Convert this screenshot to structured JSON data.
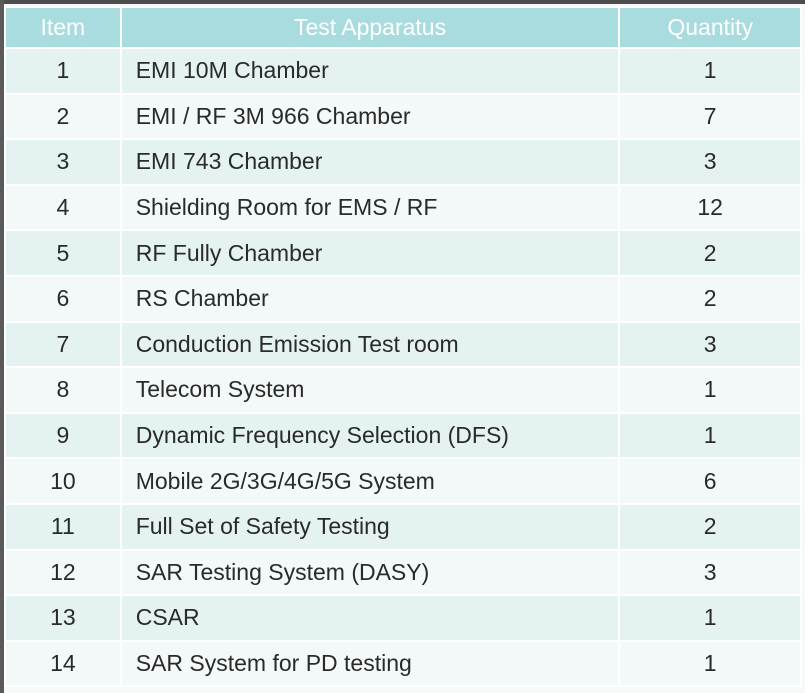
{
  "table": {
    "header": [
      "Item",
      "Test Apparatus",
      "Quantity"
    ],
    "rows": [
      [
        1,
        "EMI 10M Chamber",
        1
      ],
      [
        2,
        "EMI / RF 3M 966 Chamber",
        7
      ],
      [
        3,
        "EMI 743 Chamber",
        3
      ],
      [
        4,
        "Shielding Room for EMS / RF",
        12
      ],
      [
        5,
        "RF Fully Chamber",
        2
      ],
      [
        6,
        "RS Chamber",
        2
      ],
      [
        7,
        "Conduction Emission Test room",
        3
      ],
      [
        8,
        "Telecom System",
        1
      ],
      [
        9,
        "Dynamic Frequency Selection (DFS)",
        1
      ],
      [
        10,
        "Mobile 2G/3G/4G/5G System",
        6
      ],
      [
        11,
        "Full Set of Safety Testing",
        2
      ],
      [
        12,
        "SAR Testing System (DASY)",
        3
      ],
      [
        13,
        "CSAR",
        1
      ],
      [
        14,
        "SAR System for PD testing",
        1
      ]
    ]
  }
}
